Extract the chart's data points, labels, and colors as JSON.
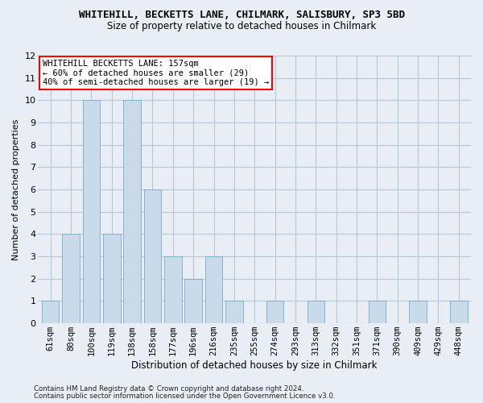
{
  "title": "WHITEHILL, BECKETTS LANE, CHILMARK, SALISBURY, SP3 5BD",
  "subtitle": "Size of property relative to detached houses in Chilmark",
  "xlabel": "Distribution of detached houses by size in Chilmark",
  "ylabel": "Number of detached properties",
  "categories": [
    "61sqm",
    "80sqm",
    "100sqm",
    "119sqm",
    "138sqm",
    "158sqm",
    "177sqm",
    "196sqm",
    "216sqm",
    "235sqm",
    "255sqm",
    "274sqm",
    "293sqm",
    "313sqm",
    "332sqm",
    "351sqm",
    "371sqm",
    "390sqm",
    "409sqm",
    "429sqm",
    "448sqm"
  ],
  "values": [
    1,
    4,
    10,
    4,
    10,
    6,
    3,
    2,
    3,
    1,
    0,
    1,
    0,
    1,
    0,
    0,
    1,
    0,
    1,
    0,
    1
  ],
  "bar_color": "#c9daea",
  "bar_edge_color": "#7aaac8",
  "ylim": [
    0,
    12
  ],
  "yticks": [
    0,
    1,
    2,
    3,
    4,
    5,
    6,
    7,
    8,
    9,
    10,
    11,
    12
  ],
  "annotation_line1": "WHITEHILL BECKETTS LANE: 157sqm",
  "annotation_line2": "← 60% of detached houses are smaller (29)",
  "annotation_line3": "40% of semi-detached houses are larger (19) →",
  "footer1": "Contains HM Land Registry data © Crown copyright and database right 2024.",
  "footer2": "Contains public sector information licensed under the Open Government Licence v3.0.",
  "bg_color": "#e8eef4",
  "grid_color": "#b8c8d4",
  "title_fontsize": 9,
  "subtitle_fontsize": 8.5,
  "ylabel_fontsize": 8,
  "xlabel_fontsize": 8.5,
  "tick_fontsize": 7.5,
  "annot_fontsize": 7.5
}
